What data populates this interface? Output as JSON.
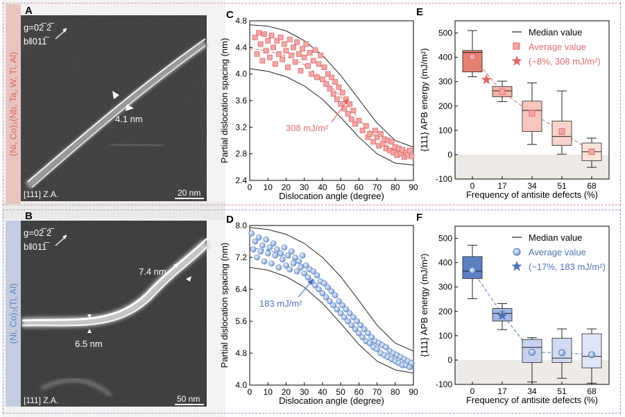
{
  "panel_A": {
    "letter": "A",
    "g": "g=02̅ 2̅",
    "b": "b‖011̅",
    "spacing": "4.1 nm",
    "za": "[111] Z.A.",
    "scale": "20 nm",
    "side_label": "(Ni, Co)₃(Nb, Ta, W, Ti, Al)"
  },
  "panel_B": {
    "letter": "B",
    "g": "g=02̅ 2̅",
    "b": "b‖011̅",
    "spacing_upper": "7.4 nm",
    "spacing_lower": "6.5 nm",
    "za": "[111] Z.A.",
    "scale": "50 nm",
    "side_label": "(Ni, Co)₃(Ti, Al)"
  },
  "colors": {
    "red": "#e06a6a",
    "red_fill": "#f3a8a8",
    "blue": "#4f73b8",
    "blue_fill": "#a9c1e6"
  },
  "chart_data": [
    {
      "type": "scatter",
      "panel": "C",
      "xlabel": "Dislocation angle (degree)",
      "ylabel": "Partial dislocation spacing (nm)",
      "xlim": [
        0,
        90
      ],
      "ylim": [
        2.4,
        4.8
      ],
      "xticks": [
        0,
        10,
        20,
        30,
        40,
        50,
        60,
        70,
        80,
        90
      ],
      "yticks": [
        "2.4",
        "2.8",
        "3.2",
        "3.6",
        "4.0",
        "4.4",
        "4.8"
      ],
      "annotation": "308 mJ/m²",
      "upper_envelope": [
        [
          0,
          4.74
        ],
        [
          10,
          4.72
        ],
        [
          20,
          4.65
        ],
        [
          30,
          4.5
        ],
        [
          40,
          4.28
        ],
        [
          50,
          3.98
        ],
        [
          60,
          3.62
        ],
        [
          70,
          3.26
        ],
        [
          80,
          3.0
        ],
        [
          90,
          2.9
        ]
      ],
      "lower_envelope": [
        [
          0,
          4.08
        ],
        [
          10,
          4.04
        ],
        [
          20,
          3.96
        ],
        [
          30,
          3.82
        ],
        [
          40,
          3.62
        ],
        [
          50,
          3.35
        ],
        [
          60,
          3.05
        ],
        [
          70,
          2.8
        ],
        [
          80,
          2.66
        ],
        [
          90,
          2.63
        ]
      ],
      "fit_curve": [
        [
          0,
          4.38
        ],
        [
          10,
          4.35
        ],
        [
          20,
          4.27
        ],
        [
          30,
          4.14
        ],
        [
          40,
          3.94
        ],
        [
          50,
          3.66
        ],
        [
          60,
          3.32
        ],
        [
          70,
          3.03
        ],
        [
          80,
          2.84
        ],
        [
          90,
          2.77
        ]
      ],
      "points": [
        [
          3,
          4.55
        ],
        [
          4,
          4.3
        ],
        [
          5,
          4.62
        ],
        [
          6,
          4.45
        ],
        [
          7,
          4.2
        ],
        [
          8,
          4.6
        ],
        [
          9,
          4.35
        ],
        [
          10,
          4.5
        ],
        [
          11,
          4.25
        ],
        [
          12,
          4.58
        ],
        [
          13,
          4.4
        ],
        [
          14,
          4.15
        ],
        [
          15,
          4.5
        ],
        [
          16,
          4.3
        ],
        [
          17,
          4.55
        ],
        [
          18,
          4.22
        ],
        [
          19,
          4.45
        ],
        [
          20,
          4.35
        ],
        [
          21,
          4.1
        ],
        [
          22,
          4.52
        ],
        [
          23,
          4.28
        ],
        [
          24,
          4.4
        ],
        [
          25,
          4.18
        ],
        [
          26,
          4.48
        ],
        [
          27,
          4.3
        ],
        [
          28,
          4.05
        ],
        [
          29,
          4.38
        ],
        [
          30,
          4.25
        ],
        [
          31,
          4.45
        ],
        [
          32,
          4.12
        ],
        [
          33,
          4.32
        ],
        [
          34,
          4.0
        ],
        [
          35,
          4.2
        ],
        [
          36,
          4.36
        ],
        [
          37,
          3.95
        ],
        [
          38,
          4.15
        ],
        [
          39,
          4.28
        ],
        [
          40,
          3.92
        ],
        [
          41,
          4.1
        ],
        [
          42,
          3.85
        ],
        [
          43,
          4.0
        ],
        [
          44,
          3.78
        ],
        [
          45,
          3.95
        ],
        [
          46,
          3.7
        ],
        [
          47,
          3.88
        ],
        [
          48,
          3.62
        ],
        [
          49,
          3.8
        ],
        [
          50,
          3.55
        ],
        [
          51,
          3.72
        ],
        [
          52,
          3.48
        ],
        [
          53,
          3.62
        ],
        [
          54,
          3.4
        ],
        [
          55,
          3.55
        ],
        [
          56,
          3.32
        ],
        [
          57,
          3.45
        ],
        [
          58,
          3.25
        ],
        [
          60,
          3.3
        ],
        [
          62,
          3.15
        ],
        [
          64,
          3.22
        ],
        [
          65,
          3.05
        ],
        [
          66,
          3.1
        ],
        [
          68,
          2.98
        ],
        [
          69,
          3.15
        ],
        [
          70,
          3.05
        ],
        [
          71,
          2.92
        ],
        [
          72,
          3.1
        ],
        [
          73,
          2.95
        ],
        [
          74,
          3.02
        ],
        [
          75,
          2.88
        ],
        [
          76,
          3.0
        ],
        [
          77,
          2.85
        ],
        [
          78,
          2.98
        ],
        [
          79,
          2.82
        ],
        [
          80,
          2.9
        ],
        [
          81,
          2.78
        ],
        [
          82,
          2.88
        ],
        [
          83,
          2.8
        ],
        [
          84,
          2.86
        ],
        [
          85,
          2.75
        ],
        [
          86,
          2.82
        ],
        [
          87,
          2.78
        ],
        [
          88,
          2.85
        ],
        [
          89,
          2.76
        ]
      ]
    },
    {
      "type": "scatter",
      "panel": "D",
      "xlabel": "Dislocation angle (degree)",
      "ylabel": "Partial dislocation spacing (nm)",
      "xlim": [
        0,
        90
      ],
      "ylim": [
        4.0,
        8.0
      ],
      "xticks": [
        0,
        10,
        20,
        30,
        40,
        50,
        60,
        70,
        80,
        90
      ],
      "yticks": [
        "4.0",
        "4.8",
        "5.6",
        "6.4",
        "7.2",
        "8.0"
      ],
      "annotation": "183 mJ/m²",
      "upper_envelope": [
        [
          0,
          7.95
        ],
        [
          10,
          7.9
        ],
        [
          20,
          7.78
        ],
        [
          30,
          7.55
        ],
        [
          40,
          7.2
        ],
        [
          50,
          6.72
        ],
        [
          60,
          6.12
        ],
        [
          70,
          5.5
        ],
        [
          80,
          5.05
        ],
        [
          90,
          4.85
        ]
      ],
      "lower_envelope": [
        [
          0,
          6.95
        ],
        [
          10,
          6.88
        ],
        [
          20,
          6.72
        ],
        [
          30,
          6.45
        ],
        [
          40,
          6.05
        ],
        [
          50,
          5.55
        ],
        [
          60,
          5.02
        ],
        [
          70,
          4.6
        ],
        [
          80,
          4.38
        ],
        [
          90,
          4.3
        ]
      ],
      "fit_curve": [
        [
          0,
          7.45
        ],
        [
          10,
          7.38
        ],
        [
          20,
          7.24
        ],
        [
          30,
          7.0
        ],
        [
          40,
          6.62
        ],
        [
          50,
          6.12
        ],
        [
          60,
          5.56
        ],
        [
          70,
          5.05
        ],
        [
          80,
          4.7
        ],
        [
          90,
          4.57
        ]
      ],
      "points": [
        [
          1,
          7.8
        ],
        [
          2,
          7.4
        ],
        [
          3,
          7.6
        ],
        [
          4,
          7.2
        ],
        [
          5,
          7.7
        ],
        [
          6,
          7.35
        ],
        [
          7,
          7.5
        ],
        [
          8,
          7.1
        ],
        [
          9,
          7.65
        ],
        [
          10,
          7.3
        ],
        [
          11,
          7.45
        ],
        [
          12,
          7.05
        ],
        [
          13,
          7.55
        ],
        [
          14,
          7.25
        ],
        [
          15,
          7.4
        ],
        [
          16,
          6.95
        ],
        [
          17,
          7.3
        ],
        [
          18,
          7.15
        ],
        [
          19,
          7.45
        ],
        [
          20,
          7.0
        ],
        [
          21,
          7.25
        ],
        [
          22,
          6.9
        ],
        [
          23,
          7.35
        ],
        [
          24,
          7.05
        ],
        [
          25,
          7.2
        ],
        [
          26,
          6.85
        ],
        [
          27,
          7.1
        ],
        [
          28,
          6.95
        ],
        [
          29,
          7.25
        ],
        [
          30,
          6.8
        ],
        [
          31,
          7.0
        ],
        [
          32,
          6.7
        ],
        [
          33,
          6.9
        ],
        [
          34,
          6.6
        ],
        [
          35,
          6.85
        ],
        [
          36,
          6.5
        ],
        [
          37,
          6.75
        ],
        [
          38,
          6.4
        ],
        [
          39,
          6.6
        ],
        [
          40,
          6.3
        ],
        [
          41,
          6.55
        ],
        [
          42,
          6.2
        ],
        [
          43,
          6.45
        ],
        [
          44,
          6.1
        ],
        [
          45,
          6.35
        ],
        [
          46,
          6.0
        ],
        [
          47,
          6.25
        ],
        [
          48,
          5.9
        ],
        [
          49,
          6.1
        ],
        [
          50,
          5.8
        ],
        [
          51,
          6.0
        ],
        [
          52,
          5.7
        ],
        [
          53,
          5.9
        ],
        [
          54,
          5.6
        ],
        [
          55,
          5.8
        ],
        [
          56,
          5.5
        ],
        [
          57,
          5.7
        ],
        [
          58,
          5.4
        ],
        [
          59,
          5.6
        ],
        [
          60,
          5.3
        ],
        [
          61,
          5.5
        ],
        [
          62,
          5.2
        ],
        [
          63,
          5.4
        ],
        [
          64,
          5.1
        ],
        [
          65,
          5.3
        ],
        [
          66,
          5.05
        ],
        [
          67,
          5.2
        ],
        [
          68,
          4.95
        ],
        [
          69,
          5.1
        ],
        [
          70,
          4.9
        ],
        [
          71,
          5.05
        ],
        [
          72,
          4.8
        ],
        [
          73,
          5.0
        ],
        [
          74,
          4.75
        ],
        [
          75,
          4.95
        ],
        [
          76,
          4.7
        ],
        [
          77,
          4.85
        ],
        [
          78,
          4.65
        ],
        [
          79,
          4.8
        ],
        [
          80,
          4.6
        ],
        [
          81,
          4.75
        ],
        [
          82,
          4.55
        ],
        [
          83,
          4.7
        ],
        [
          84,
          4.5
        ],
        [
          85,
          4.65
        ],
        [
          86,
          4.5
        ],
        [
          87,
          4.6
        ],
        [
          88,
          4.45
        ],
        [
          89,
          4.55
        ]
      ]
    },
    {
      "type": "box",
      "panel": "E",
      "xlabel": "Frequency of antisite defects (%)",
      "ylabel": "{111} APB energy (mJ/m²)",
      "ylim": [
        -100,
        550
      ],
      "yticks": [
        "-100",
        "0",
        "100",
        "200",
        "300",
        "400",
        "500"
      ],
      "categories": [
        "0",
        "17",
        "34",
        "51",
        "68"
      ],
      "boxes": [
        {
          "x": 0,
          "min": 320,
          "q1": 340,
          "median": 420,
          "q3": 428,
          "max": 510,
          "mean": 402
        },
        {
          "x": 17,
          "min": 218,
          "q1": 238,
          "median": 262,
          "q3": 280,
          "max": 302,
          "mean": 258
        },
        {
          "x": 34,
          "min": 42,
          "q1": 95,
          "median": 182,
          "q3": 220,
          "max": 295,
          "mean": 170
        },
        {
          "x": 51,
          "min": 2,
          "q1": 38,
          "median": 75,
          "q3": 138,
          "max": 262,
          "mean": 95
        },
        {
          "x": 68,
          "min": -52,
          "q1": -25,
          "median": 12,
          "q3": 48,
          "max": 68,
          "mean": 12
        }
      ],
      "star": {
        "x": 8,
        "y": 308
      },
      "legend": {
        "median": "Median value",
        "average": "Average value",
        "star": "(~8%, 308 mJ/m²)"
      }
    },
    {
      "type": "box",
      "panel": "F",
      "xlabel": "Frequency of antisite defects (%)",
      "ylabel": "{111} APB energy (mJ/m²)",
      "ylim": [
        -100,
        550
      ],
      "yticks": [
        "-100",
        "0",
        "100",
        "200",
        "300",
        "400",
        "500"
      ],
      "categories": [
        "0",
        "17",
        "34",
        "51",
        "68"
      ],
      "boxes": [
        {
          "x": 0,
          "min": 252,
          "q1": 335,
          "median": 365,
          "q3": 425,
          "max": 472,
          "mean": 368
        },
        {
          "x": 17,
          "min": 125,
          "q1": 160,
          "median": 192,
          "q3": 212,
          "max": 232,
          "mean": 188
        },
        {
          "x": 34,
          "min": -90,
          "q1": -10,
          "median": 52,
          "q3": 85,
          "max": 92,
          "mean": 32
        },
        {
          "x": 51,
          "min": -75,
          "q1": -10,
          "median": 8,
          "q3": 90,
          "max": 128,
          "mean": 30
        },
        {
          "x": 68,
          "min": -95,
          "q1": -32,
          "median": 15,
          "q3": 108,
          "max": 128,
          "mean": 22
        }
      ],
      "star": {
        "x": 17,
        "y": 183
      },
      "legend": {
        "median": "Median value",
        "average": "Average value",
        "star": "(~17%, 183 mJ/m²)"
      }
    }
  ]
}
